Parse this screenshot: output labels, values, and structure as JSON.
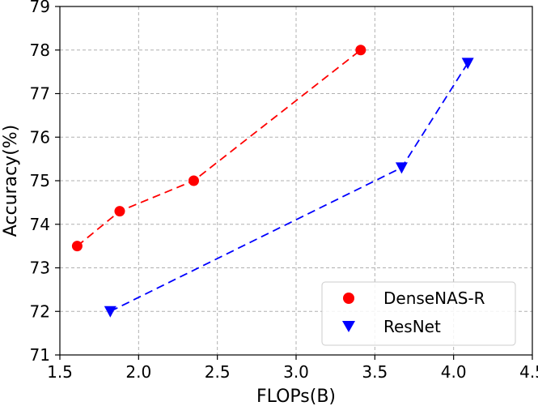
{
  "chart_data": {
    "type": "line",
    "xlabel": "FLOPs(B)",
    "ylabel": "Accuracy(%)",
    "xlim": [
      1.5,
      4.5
    ],
    "ylim": [
      71,
      79
    ],
    "xticks": [
      1.5,
      2.0,
      2.5,
      3.0,
      3.5,
      4.0,
      4.5
    ],
    "xtick_labels": [
      "1.5",
      "2.0",
      "2.5",
      "3.0",
      "3.5",
      "4.0",
      "4.5"
    ],
    "yticks": [
      71,
      72,
      73,
      74,
      75,
      76,
      77,
      78,
      79
    ],
    "ytick_labels": [
      "71",
      "72",
      "73",
      "74",
      "75",
      "76",
      "77",
      "78",
      "79"
    ],
    "grid": true,
    "legend_position": "bottom-right",
    "series": [
      {
        "name": "DenseNAS-R",
        "color": "#ff0000",
        "marker": "circle",
        "line_style": "dashed",
        "x": [
          1.61,
          1.88,
          2.35,
          3.41
        ],
        "y": [
          73.5,
          74.3,
          75.0,
          78.0
        ]
      },
      {
        "name": "ResNet",
        "color": "#0000ff",
        "marker": "triangle-down",
        "line_style": "dashed",
        "x": [
          1.82,
          3.67,
          4.09
        ],
        "y": [
          72.0,
          75.3,
          77.7
        ]
      }
    ]
  }
}
